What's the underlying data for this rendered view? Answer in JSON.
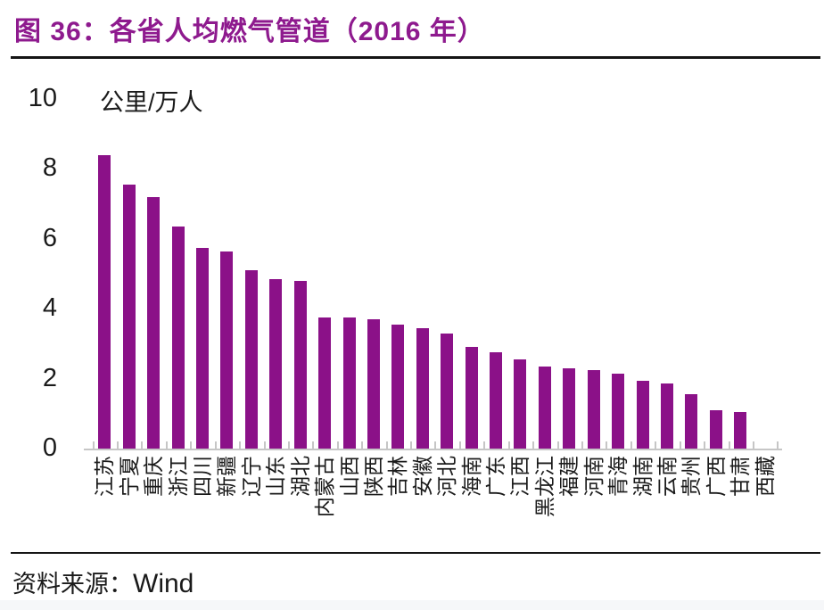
{
  "figure": {
    "title": "图 36：各省人均燃气管道（2016 年）",
    "source_label": "资料来源：",
    "source_value": "Wind"
  },
  "chart_data": {
    "type": "bar",
    "title": "各省人均燃气管道（2016 年）",
    "unit_label": "公里/万人",
    "categories": [
      "江苏",
      "宁夏",
      "重庆",
      "浙江",
      "四川",
      "新疆",
      "辽宁",
      "山东",
      "湖北",
      "内蒙古",
      "山西",
      "陕西",
      "吉林",
      "安徽",
      "河北",
      "海南",
      "广东",
      "江西",
      "黑龙江",
      "福建",
      "河南",
      "青海",
      "湖南",
      "云南",
      "贵州",
      "广西",
      "甘肃",
      "西藏"
    ],
    "values": [
      8.4,
      7.55,
      7.2,
      6.35,
      5.75,
      5.65,
      5.1,
      4.85,
      4.8,
      3.75,
      3.75,
      3.7,
      3.55,
      3.45,
      3.3,
      2.9,
      2.75,
      2.55,
      2.35,
      2.3,
      2.25,
      2.15,
      1.95,
      1.85,
      1.55,
      1.1,
      1.05,
      0
    ],
    "ylabel": "公里/万人",
    "ylim": [
      0,
      10
    ],
    "yticks": [
      0,
      2,
      4,
      6,
      8,
      10
    ],
    "grid": false,
    "legend_position": "none",
    "bar_color": "#8B1188",
    "axis_color": "#c6c6c6",
    "title_color": "#8E1A8E"
  }
}
